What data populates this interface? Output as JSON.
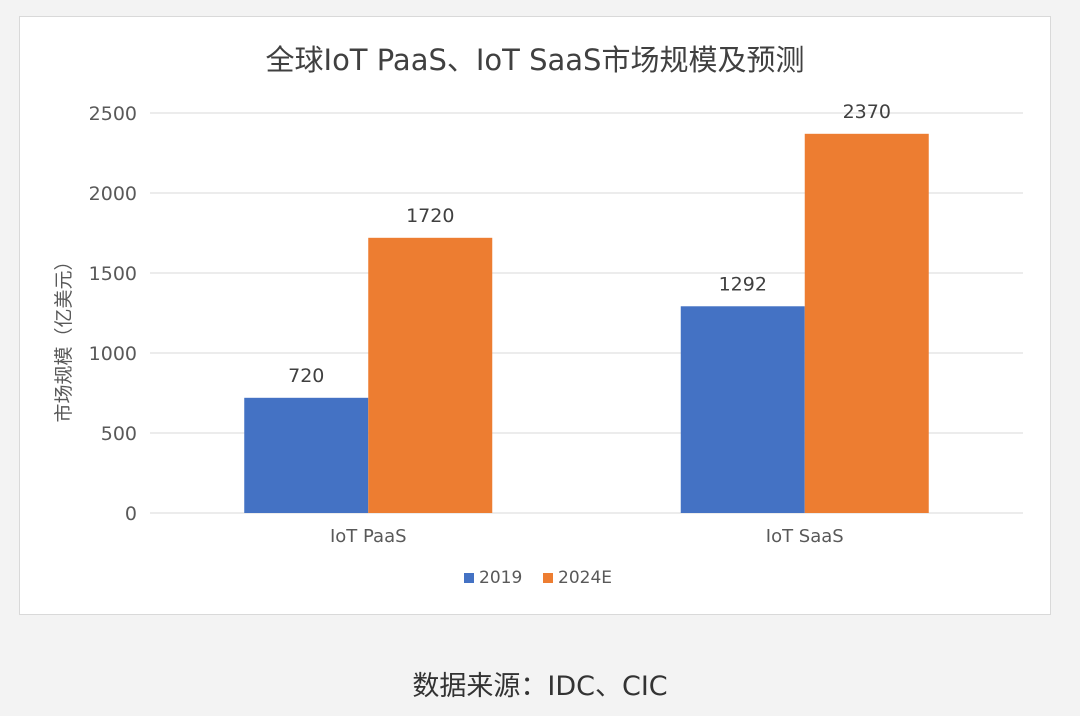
{
  "chart_data": {
    "type": "bar",
    "title": "全球IoT PaaS、IoT SaaS市场规模及预测",
    "ylabel": "市场规模（亿美元）",
    "xlabel": "",
    "categories": [
      "IoT PaaS",
      "IoT SaaS"
    ],
    "series": [
      {
        "name": "2019",
        "values": [
          720,
          1292
        ]
      },
      {
        "name": "2024E",
        "values": [
          1720,
          2370
        ]
      }
    ],
    "ylim": [
      0,
      2500
    ],
    "yticks": [
      0,
      500,
      1000,
      1500,
      2000,
      2500
    ],
    "grid": true,
    "legend_position": "bottom",
    "data_labels": true,
    "colors": {
      "2019": "#4472c4",
      "2024E": "#ed7d31",
      "grid": "#d9d9d9",
      "text": "#595959"
    }
  },
  "source_note": "数据来源：IDC、CIC"
}
